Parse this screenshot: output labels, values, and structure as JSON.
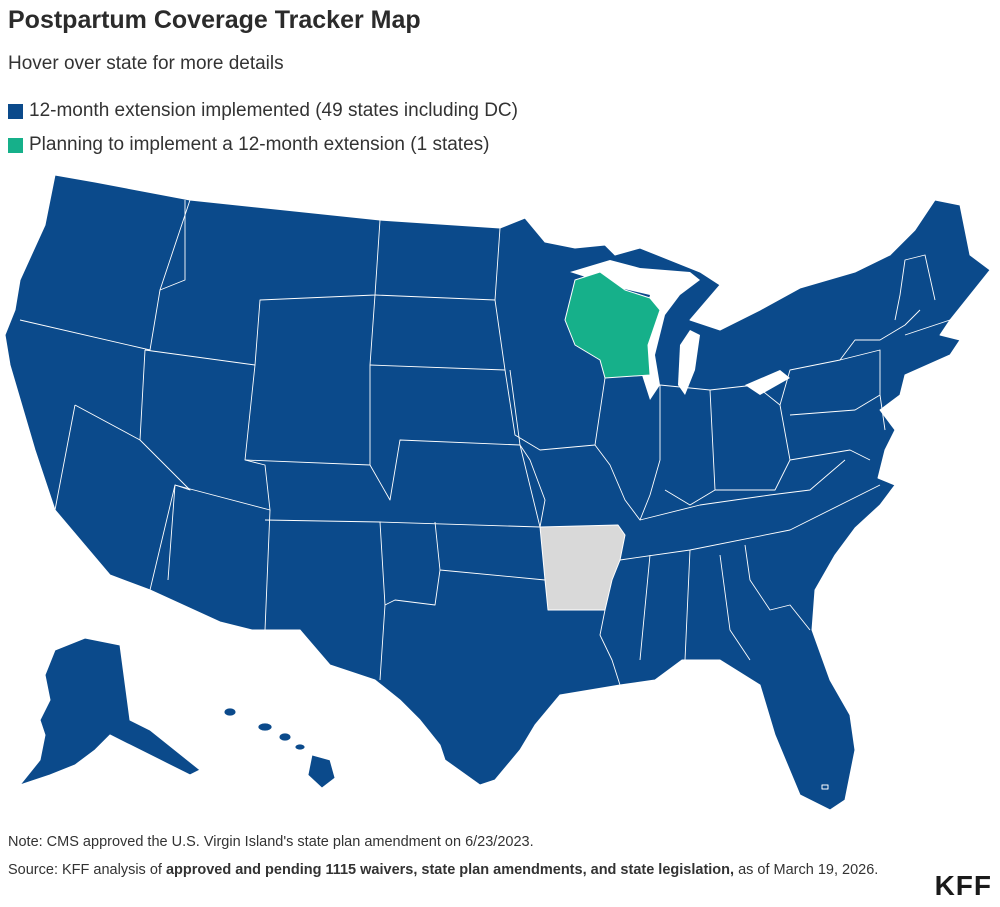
{
  "header": {
    "title": "Postpartum Coverage Tracker Map",
    "subtitle": "Hover over state for more details"
  },
  "legend": {
    "items": [
      {
        "label": "12-month extension implemented (49 states including DC)",
        "color": "#0b4a8b"
      },
      {
        "label": "Planning to implement a 12-month extension (1 states)",
        "color": "#16b08a"
      }
    ]
  },
  "colors": {
    "implemented": "#0b4a8b",
    "planning": "#16b08a",
    "none": "#d9d9d9",
    "border": "#ffffff"
  },
  "map_data": {
    "planning_states": [
      "Wisconsin"
    ],
    "no_extension_states": [
      "Arkansas"
    ]
  },
  "footer": {
    "note": "Note: CMS approved the U.S. Virgin Island's state plan amendment on 6/23/2023.",
    "source_prefix": "Source: KFF analysis of ",
    "source_bold": "approved and pending 1115 waivers, state plan amendments, and state legislation,",
    "source_suffix": " as of March 19, 2026.",
    "logo": "KFF"
  }
}
